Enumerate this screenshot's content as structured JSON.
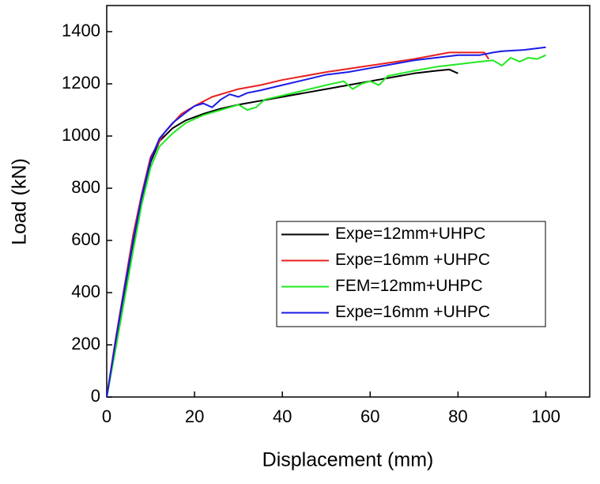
{
  "chart_data": {
    "type": "line",
    "xlabel": "Displacement (mm)",
    "ylabel": "Load (kN)",
    "xlim": [
      0,
      110
    ],
    "xticks": [
      0,
      20,
      40,
      60,
      80,
      100
    ],
    "ylim": [
      0,
      1500
    ],
    "yticks": [
      0,
      200,
      400,
      600,
      800,
      1000,
      1200,
      1400
    ],
    "legend": "right",
    "series": [
      {
        "name": "Expe=12mm+UHPC",
        "color": "#000000",
        "x": [
          0,
          2,
          4,
          6,
          8,
          10,
          12,
          15,
          18,
          22,
          26,
          30,
          35,
          40,
          45,
          50,
          55,
          60,
          65,
          70,
          75,
          78,
          80
        ],
        "values": [
          0,
          200,
          400,
          580,
          760,
          900,
          980,
          1030,
          1060,
          1085,
          1105,
          1120,
          1135,
          1150,
          1165,
          1180,
          1195,
          1210,
          1225,
          1240,
          1250,
          1255,
          1240
        ]
      },
      {
        "name": "Expe=16mm +UHPC",
        "color": "#e8201f",
        "x": [
          0,
          2,
          4,
          6,
          8,
          10,
          13,
          17,
          20,
          24,
          30,
          35,
          40,
          50,
          60,
          70,
          78,
          83,
          86,
          87
        ],
        "values": [
          0,
          220,
          420,
          620,
          780,
          920,
          1010,
          1085,
          1115,
          1150,
          1180,
          1195,
          1215,
          1245,
          1270,
          1295,
          1320,
          1320,
          1320,
          1295
        ]
      },
      {
        "name": "FEM=12mm+UHPC",
        "color": "#22e822",
        "x": [
          0,
          2,
          4,
          6,
          8,
          10,
          12,
          15,
          18,
          22,
          26,
          30,
          32,
          34,
          36,
          40,
          45,
          50,
          54,
          56,
          58,
          60,
          62,
          64,
          70,
          75,
          80,
          85,
          88,
          90,
          92,
          94,
          96,
          98,
          100
        ],
        "values": [
          0,
          180,
          370,
          560,
          740,
          880,
          960,
          1010,
          1050,
          1080,
          1100,
          1120,
          1100,
          1110,
          1140,
          1155,
          1175,
          1195,
          1210,
          1180,
          1200,
          1210,
          1195,
          1230,
          1250,
          1265,
          1275,
          1285,
          1290,
          1270,
          1300,
          1285,
          1300,
          1295,
          1310
        ]
      },
      {
        "name": "Expe=16mm +UHPC",
        "color": "#1a1ae8",
        "x": [
          0,
          2,
          4,
          6,
          8,
          10,
          12,
          15,
          18,
          20,
          22,
          24,
          26,
          28,
          30,
          32,
          35,
          40,
          45,
          50,
          55,
          60,
          65,
          70,
          75,
          80,
          85,
          88,
          90,
          95,
          100
        ],
        "values": [
          0,
          210,
          410,
          600,
          770,
          910,
          990,
          1050,
          1090,
          1115,
          1125,
          1110,
          1140,
          1160,
          1150,
          1165,
          1175,
          1195,
          1215,
          1235,
          1245,
          1260,
          1275,
          1290,
          1300,
          1310,
          1310,
          1320,
          1325,
          1330,
          1340
        ]
      }
    ]
  }
}
